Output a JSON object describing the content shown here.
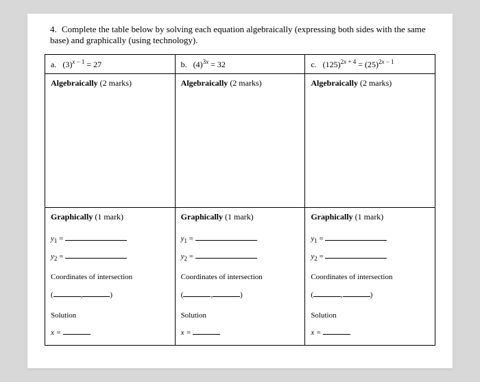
{
  "question": {
    "number": "4.",
    "text": "Complete the table below by solving each equation algebraically (expressing both sides with the same base) and graphically (using technology)."
  },
  "columns": [
    {
      "label": "a.",
      "equation_html": "(3)<sup><span class=\"italic\">x</span> − 1</sup> = 27"
    },
    {
      "label": "b.",
      "equation_html": "(4)<sup>3<span class=\"italic\">x</span></sup> = 32"
    },
    {
      "label": "c.",
      "equation_html": "(125)<sup>2<span class=\"italic\">x</span> + 4</sup> = (25)<sup>2<span class=\"italic\">x</span> − 1</sup>"
    }
  ],
  "sections": {
    "algebraic_title": "Algebraically",
    "algebraic_marks": "(2 marks)",
    "graphic_title": "Graphically",
    "graphic_marks": "(1 mark)",
    "y1_label": "y",
    "y1_sub": "1",
    "y2_label": "y",
    "y2_sub": "2",
    "eq_sign": "=",
    "coords_label": "Coordinates of intersection",
    "solution_label": "Solution",
    "x_eq": "x ="
  },
  "style": {
    "background_color": "#d8d8d8",
    "paper_color": "#ffffff",
    "border_color": "#000000",
    "text_color": "#000000",
    "font_family": "Times New Roman"
  }
}
